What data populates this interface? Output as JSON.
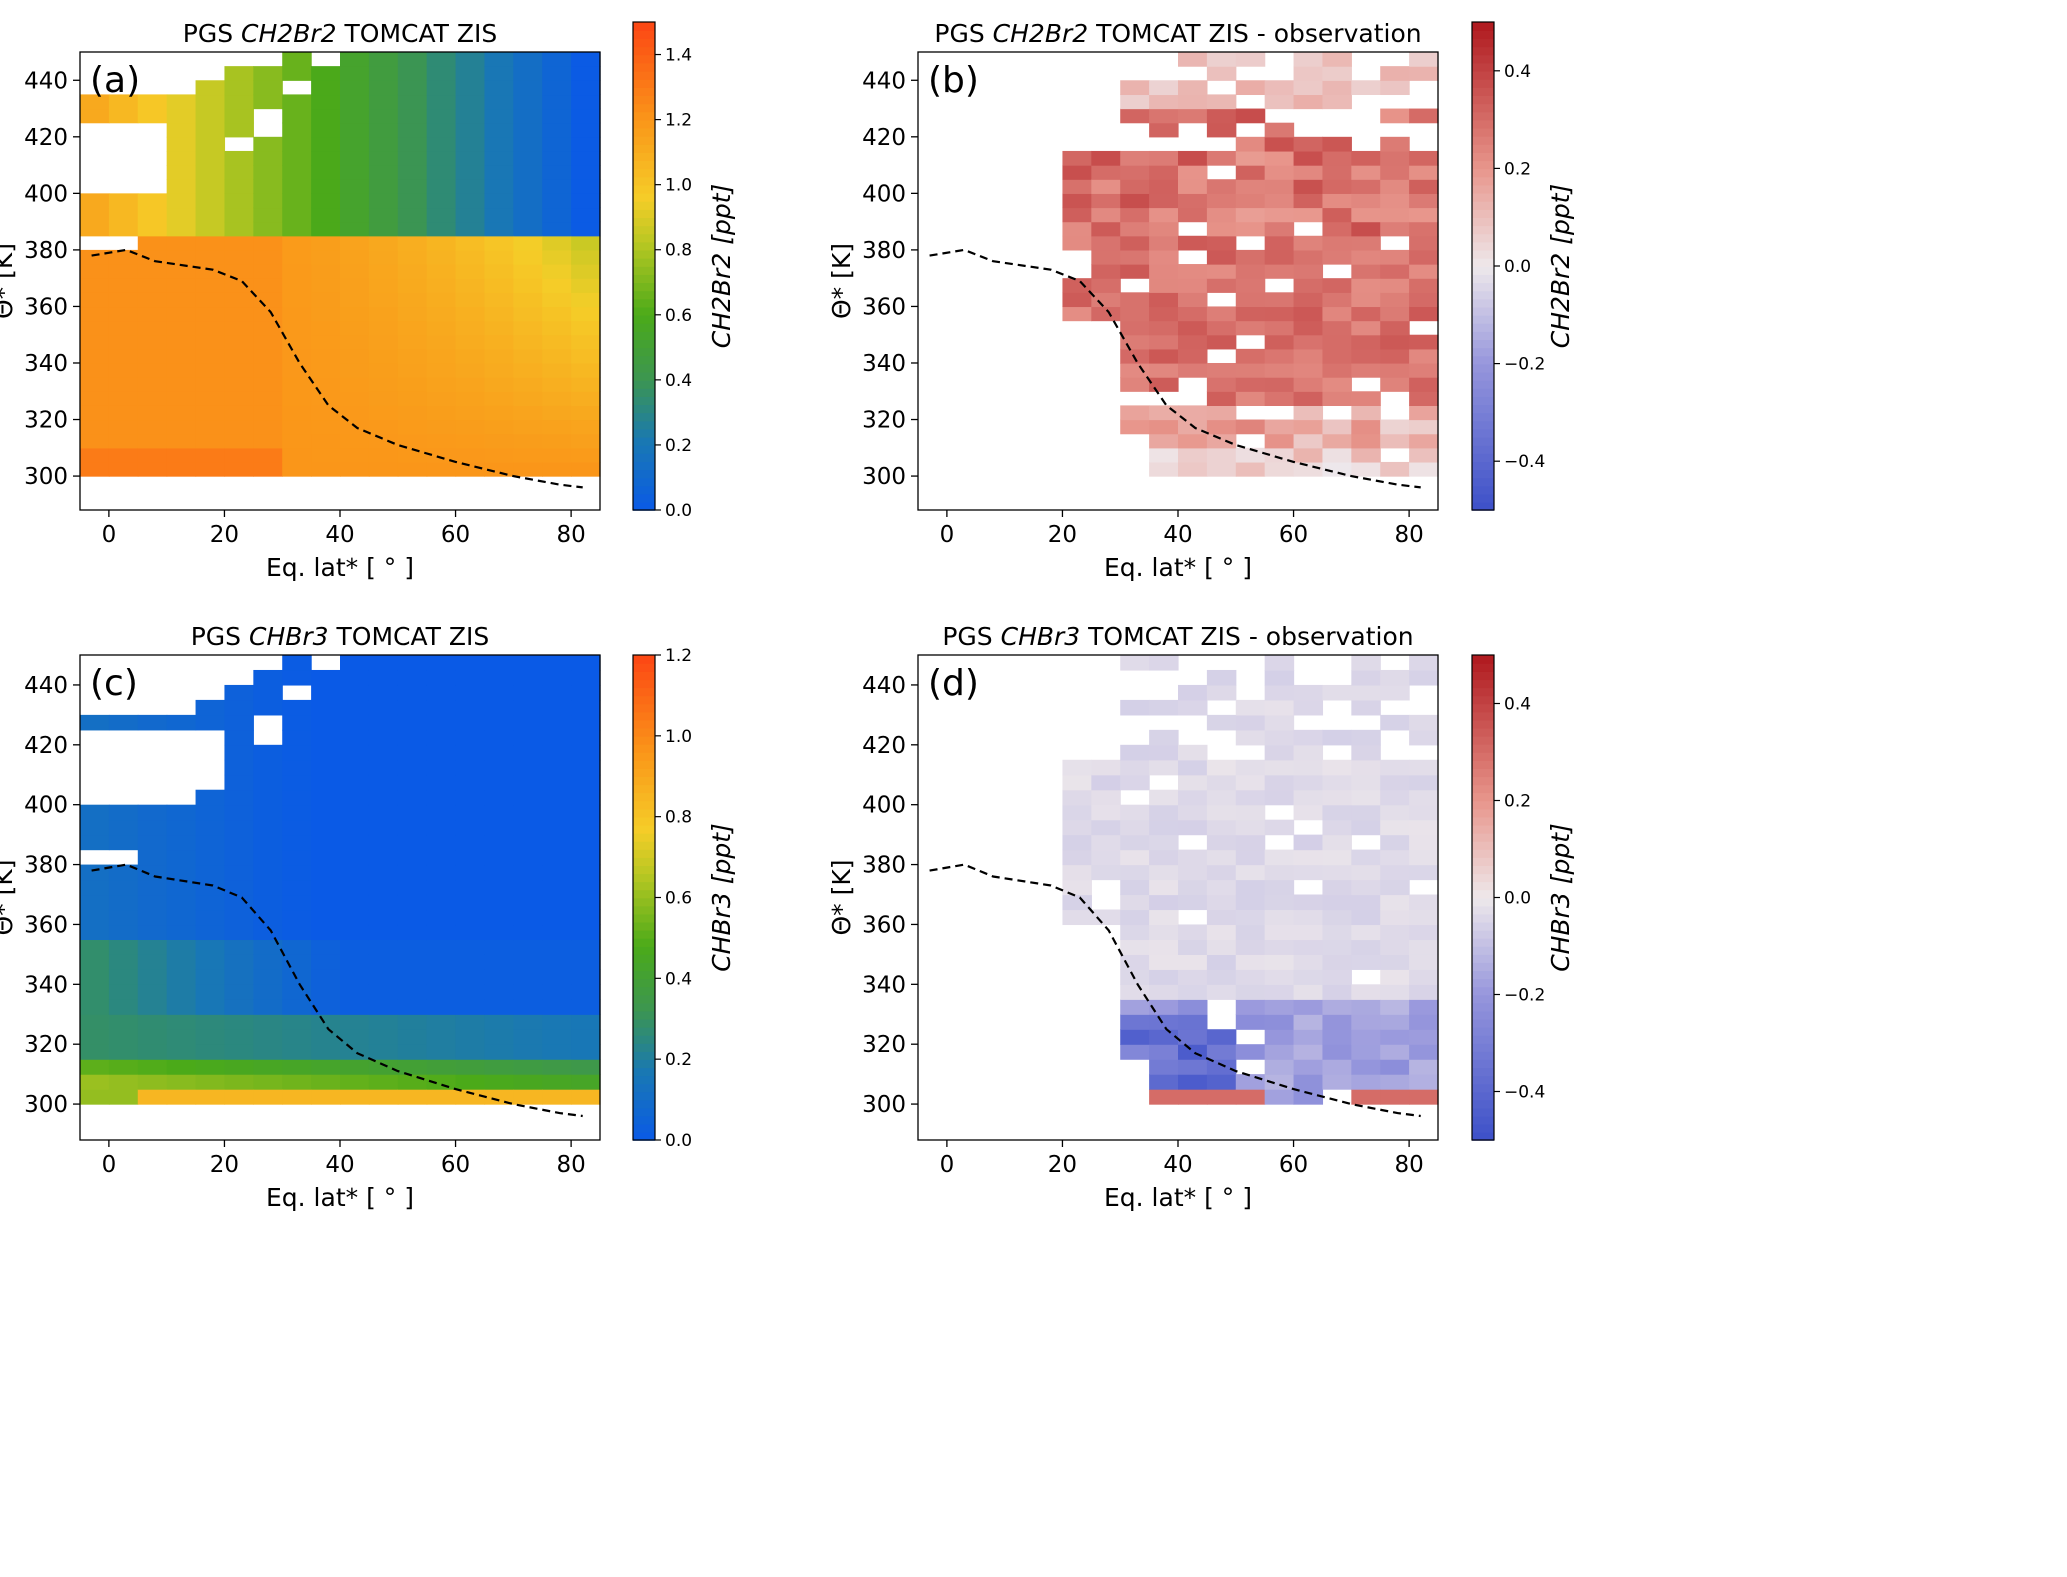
{
  "panels": [
    {
      "id": "a",
      "label": "(a)",
      "title_pre": "PGS ",
      "title_species": "CH2Br2",
      "title_post": " TOMCAT ZIS",
      "xlabel": "Eq. lat* [ ° ]",
      "ylabel": "Θ* [K]",
      "colorbar_label": "CH2Br2 [ppt]",
      "colormap": "green-yellow-orange",
      "colorbar_ticks": [
        "0.0",
        "0.2",
        "0.4",
        "0.6",
        "0.8",
        "1.0",
        "1.2",
        "1.4"
      ]
    },
    {
      "id": "b",
      "label": "(b)",
      "title_pre": "PGS ",
      "title_species": "CH2Br2",
      "title_post": " TOMCAT ZIS - observation",
      "xlabel": "Eq. lat* [ ° ]",
      "ylabel": "Θ* [K]",
      "colorbar_label": "CH2Br2 [ppt]",
      "colormap": "blue-white-red",
      "colorbar_ticks": [
        "0.4",
        "0.2",
        "0.0",
        "−0.2",
        "−0.4"
      ]
    },
    {
      "id": "c",
      "label": "(c)",
      "title_pre": "PGS ",
      "title_species": "CHBr3",
      "title_post": " TOMCAT ZIS",
      "xlabel": "Eq. lat* [ ° ]",
      "ylabel": "Θ* [K]",
      "colorbar_label": "CHBr3 [ppt]",
      "colormap": "green-yellow-orange",
      "colorbar_ticks": [
        "0.0",
        "0.2",
        "0.4",
        "0.6",
        "0.8",
        "1.0",
        "1.2"
      ]
    },
    {
      "id": "d",
      "label": "(d)",
      "title_pre": "PGS ",
      "title_species": "CHBr3",
      "title_post": " TOMCAT ZIS - observation",
      "xlabel": "Eq. lat* [ ° ]",
      "ylabel": "Θ* [K]",
      "colorbar_label": "CHBr3 [ppt]",
      "colormap": "blue-white-red",
      "colorbar_ticks": [
        "0.4",
        "0.2",
        "0.0",
        "−0.2",
        "−0.4"
      ]
    }
  ],
  "chart_data": [
    {
      "type": "heatmap",
      "panel": "a",
      "xlim": [
        -5,
        85
      ],
      "ylim": [
        288,
        450
      ],
      "clim": [
        0,
        1.5
      ],
      "xticks": [
        "0",
        "20",
        "40",
        "60",
        "80"
      ],
      "yticks": [
        "300",
        "320",
        "340",
        "360",
        "380",
        "400",
        "420",
        "440"
      ],
      "cell_deg": 5,
      "cell_K": 5,
      "overlay_line": "tropopause (dashed)"
    },
    {
      "type": "heatmap",
      "panel": "b",
      "xlim": [
        -5,
        85
      ],
      "ylim": [
        288,
        450
      ],
      "clim": [
        -0.5,
        0.5
      ],
      "xticks": [
        "0",
        "20",
        "40",
        "60",
        "80"
      ],
      "yticks": [
        "300",
        "320",
        "340",
        "360",
        "380",
        "400",
        "420",
        "440"
      ],
      "cell_deg": 5,
      "cell_K": 5,
      "overlay_line": "tropopause (dashed)"
    },
    {
      "type": "heatmap",
      "panel": "c",
      "xlim": [
        -5,
        85
      ],
      "ylim": [
        288,
        450
      ],
      "clim": [
        0,
        1.2
      ],
      "xticks": [
        "0",
        "20",
        "40",
        "60",
        "80"
      ],
      "yticks": [
        "300",
        "320",
        "340",
        "360",
        "380",
        "400",
        "420",
        "440"
      ],
      "cell_deg": 5,
      "cell_K": 5,
      "overlay_line": "tropopause (dashed)"
    },
    {
      "type": "heatmap",
      "panel": "d",
      "xlim": [
        -5,
        85
      ],
      "ylim": [
        288,
        450
      ],
      "clim": [
        -0.5,
        0.5
      ],
      "xticks": [
        "0",
        "20",
        "40",
        "60",
        "80"
      ],
      "yticks": [
        "300",
        "320",
        "340",
        "360",
        "380",
        "400",
        "420",
        "440"
      ],
      "cell_deg": 5,
      "cell_K": 5,
      "overlay_line": "tropopause (dashed)"
    }
  ],
  "tropopause": {
    "x": [
      -3,
      3,
      8,
      18,
      23,
      28,
      33,
      38,
      43,
      50,
      60,
      70,
      78,
      82
    ],
    "y": [
      378,
      380,
      376,
      373,
      369,
      358,
      340,
      325,
      317,
      311,
      305,
      300,
      297,
      296
    ]
  }
}
